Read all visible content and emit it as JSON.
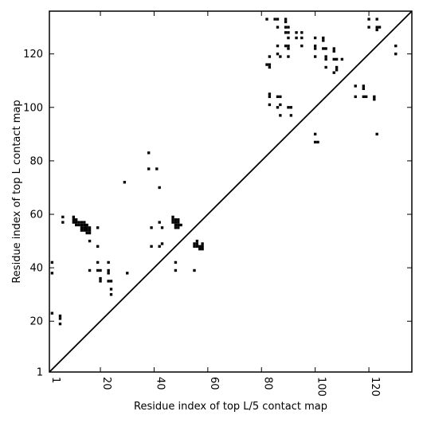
{
  "chart_data": {
    "type": "scatter",
    "title": "",
    "xlabel": "Residue index of top L/5 contact map",
    "ylabel": "Residue index of top L contact map",
    "xlim": [
      1,
      136
    ],
    "ylim": [
      1,
      136
    ],
    "xticks": [
      1,
      20,
      40,
      60,
      80,
      100,
      120
    ],
    "yticks": [
      1,
      20,
      40,
      60,
      80,
      100,
      120
    ],
    "grid": false,
    "marker_color": "#000000",
    "diagonal": true,
    "series": [
      {
        "points": [
          [
            2,
            42
          ],
          [
            2,
            38
          ],
          [
            2,
            23
          ],
          [
            5,
            22
          ],
          [
            5,
            21
          ],
          [
            5,
            19
          ],
          [
            6,
            59
          ],
          [
            6,
            57
          ],
          [
            10,
            59
          ],
          [
            10,
            58
          ],
          [
            10,
            57
          ],
          [
            11,
            58
          ],
          [
            11,
            57
          ],
          [
            11,
            56
          ],
          [
            12,
            57
          ],
          [
            12,
            56
          ],
          [
            13,
            57
          ],
          [
            13,
            56
          ],
          [
            13,
            55
          ],
          [
            13,
            54
          ],
          [
            14,
            57
          ],
          [
            14,
            56
          ],
          [
            14,
            55
          ],
          [
            14,
            54
          ],
          [
            15,
            56
          ],
          [
            15,
            55
          ],
          [
            15,
            54
          ],
          [
            15,
            53
          ],
          [
            16,
            55
          ],
          [
            16,
            54
          ],
          [
            16,
            53
          ],
          [
            16,
            50
          ],
          [
            16,
            39
          ],
          [
            19,
            55
          ],
          [
            19,
            48
          ],
          [
            19,
            42
          ],
          [
            19,
            39
          ],
          [
            20,
            39
          ],
          [
            20,
            36
          ],
          [
            20,
            35
          ],
          [
            23,
            42
          ],
          [
            23,
            39
          ],
          [
            23,
            38
          ],
          [
            23,
            35
          ],
          [
            24,
            35
          ],
          [
            24,
            32
          ],
          [
            24,
            30
          ],
          [
            29,
            72
          ],
          [
            30,
            38
          ],
          [
            38,
            83
          ],
          [
            38,
            77
          ],
          [
            39,
            55
          ],
          [
            39,
            48
          ],
          [
            41,
            77
          ],
          [
            42,
            70
          ],
          [
            42,
            57
          ],
          [
            42,
            48
          ],
          [
            43,
            55
          ],
          [
            43,
            49
          ],
          [
            47,
            59
          ],
          [
            47,
            58
          ],
          [
            47,
            57
          ],
          [
            48,
            58
          ],
          [
            48,
            57
          ],
          [
            48,
            56
          ],
          [
            48,
            55
          ],
          [
            48,
            42
          ],
          [
            48,
            39
          ],
          [
            49,
            58
          ],
          [
            49,
            57
          ],
          [
            49,
            56
          ],
          [
            49,
            55
          ],
          [
            50,
            56
          ],
          [
            55,
            49
          ],
          [
            55,
            48
          ],
          [
            55,
            39
          ],
          [
            56,
            50
          ],
          [
            56,
            49
          ],
          [
            56,
            48
          ],
          [
            57,
            48
          ],
          [
            57,
            47
          ],
          [
            58,
            49
          ],
          [
            58,
            48
          ],
          [
            58,
            47
          ],
          [
            82,
            133
          ],
          [
            82,
            116
          ],
          [
            83,
            119
          ],
          [
            83,
            116
          ],
          [
            83,
            115
          ],
          [
            83,
            105
          ],
          [
            83,
            104
          ],
          [
            83,
            101
          ],
          [
            85,
            133
          ],
          [
            86,
            133
          ],
          [
            86,
            130
          ],
          [
            86,
            123
          ],
          [
            86,
            120
          ],
          [
            86,
            104
          ],
          [
            86,
            100
          ],
          [
            87,
            119
          ],
          [
            87,
            104
          ],
          [
            87,
            101
          ],
          [
            87,
            97
          ],
          [
            89,
            133
          ],
          [
            89,
            132
          ],
          [
            89,
            130
          ],
          [
            89,
            128
          ],
          [
            89,
            123
          ],
          [
            90,
            130
          ],
          [
            90,
            128
          ],
          [
            90,
            126
          ],
          [
            90,
            123
          ],
          [
            90,
            122
          ],
          [
            90,
            119
          ],
          [
            90,
            100
          ],
          [
            91,
            100
          ],
          [
            91,
            97
          ],
          [
            93,
            128
          ],
          [
            93,
            126
          ],
          [
            95,
            128
          ],
          [
            95,
            126
          ],
          [
            95,
            123
          ],
          [
            100,
            126
          ],
          [
            100,
            123
          ],
          [
            100,
            122
          ],
          [
            100,
            119
          ],
          [
            100,
            90
          ],
          [
            100,
            87
          ],
          [
            101,
            87
          ],
          [
            103,
            126
          ],
          [
            103,
            125
          ],
          [
            103,
            122
          ],
          [
            104,
            122
          ],
          [
            104,
            119
          ],
          [
            104,
            118
          ],
          [
            104,
            115
          ],
          [
            107,
            122
          ],
          [
            107,
            121
          ],
          [
            107,
            118
          ],
          [
            107,
            113
          ],
          [
            108,
            118
          ],
          [
            108,
            115
          ],
          [
            108,
            114
          ],
          [
            110,
            118
          ],
          [
            115,
            108
          ],
          [
            115,
            104
          ],
          [
            118,
            108
          ],
          [
            118,
            107
          ],
          [
            118,
            104
          ],
          [
            119,
            104
          ],
          [
            120,
            133
          ],
          [
            120,
            130
          ],
          [
            122,
            104
          ],
          [
            122,
            103
          ],
          [
            123,
            133
          ],
          [
            123,
            130
          ],
          [
            123,
            129
          ],
          [
            123,
            90
          ],
          [
            124,
            130
          ],
          [
            130,
            123
          ],
          [
            130,
            120
          ]
        ]
      }
    ]
  }
}
